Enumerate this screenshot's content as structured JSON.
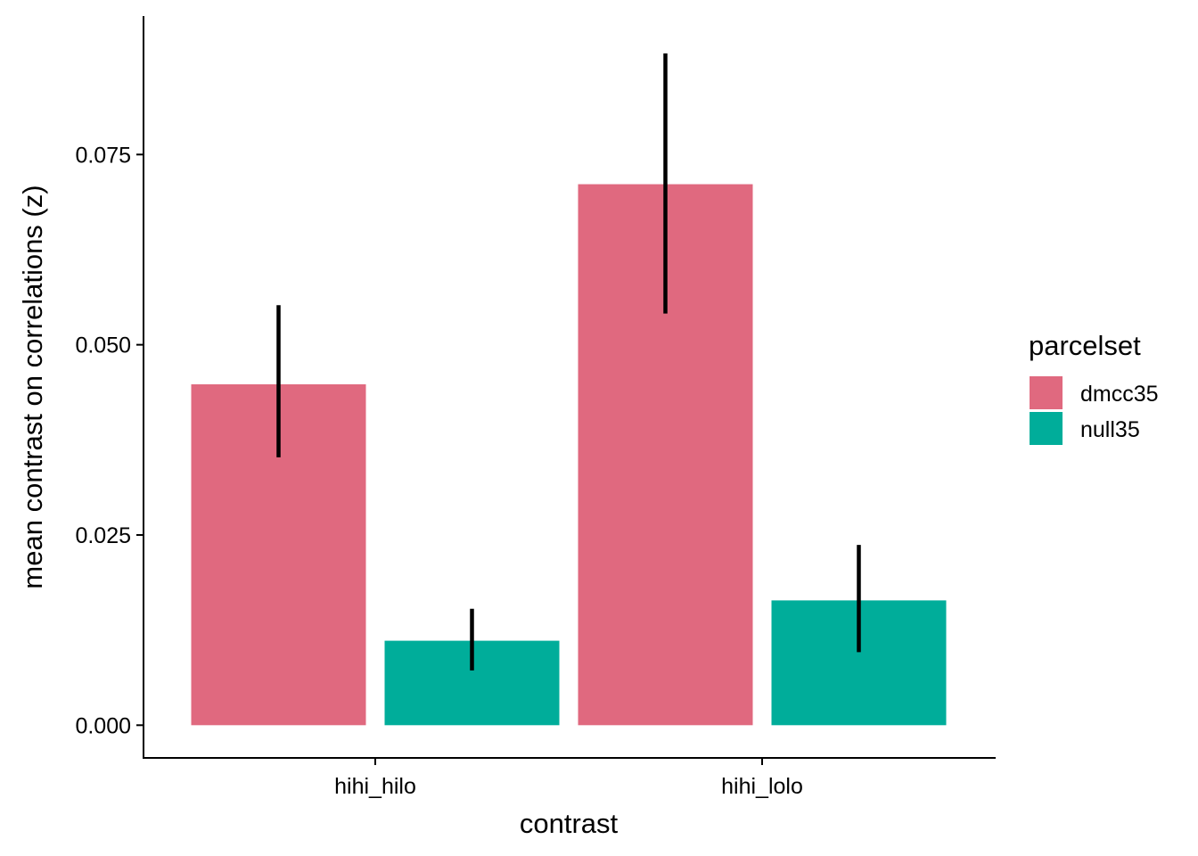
{
  "chart_data": {
    "type": "bar",
    "title": "",
    "xlabel": "contrast",
    "ylabel": "mean contrast on correlations (z)",
    "categories": [
      "hihi_hilo",
      "hihi_lolo"
    ],
    "series": [
      {
        "name": "dmcc35",
        "color": "#E0697F",
        "values": [
          0.0448,
          0.0711
        ],
        "error_low": [
          0.0352,
          0.0541
        ],
        "error_high": [
          0.0552,
          0.0883
        ]
      },
      {
        "name": "null35",
        "color": "#00AD9A",
        "values": [
          0.0111,
          0.0164
        ],
        "error_low": [
          0.0072,
          0.0096
        ],
        "error_high": [
          0.0153,
          0.0237
        ]
      }
    ],
    "ylim": [
      -0.0043,
      0.0932
    ],
    "yticks": [
      0.0,
      0.025,
      0.05,
      0.075
    ],
    "ytick_labels": [
      "0.000",
      "0.025",
      "0.050",
      "0.075"
    ],
    "grid": false,
    "legend": {
      "title": "parcelset",
      "placement": "right"
    }
  }
}
